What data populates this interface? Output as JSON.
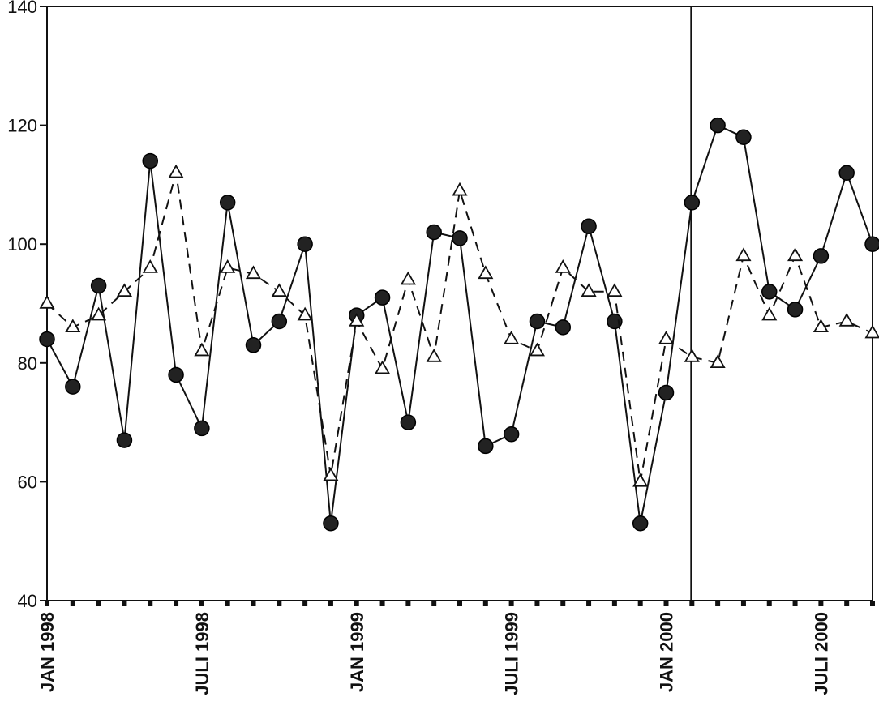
{
  "chart_data": {
    "type": "line",
    "title": "",
    "xlabel": "",
    "ylabel": "",
    "ylim": [
      40,
      140
    ],
    "yticks": [
      40,
      60,
      80,
      100,
      120,
      140
    ],
    "x_start": "JAN 1998",
    "x_end": "SEP 2000",
    "xtick_labels": [
      "JAN 1998",
      "JULI 1998",
      "JAN 1999",
      "JULI 1999",
      "JAN 2000",
      "JULI 2000"
    ],
    "xtick_label_index": [
      0,
      6,
      12,
      18,
      24,
      30
    ],
    "divider_after_index": 25,
    "grid": false,
    "legend": "none",
    "series": [
      {
        "marker": "filled-circle",
        "line_style": "solid",
        "color": "#111111",
        "values": [
          84,
          76,
          93,
          67,
          114,
          78,
          69,
          107,
          83,
          87,
          100,
          53,
          88,
          91,
          70,
          102,
          101,
          66,
          68,
          87,
          86,
          103,
          87,
          53,
          75,
          107,
          120,
          118,
          92,
          89,
          98,
          112,
          100
        ]
      },
      {
        "marker": "open-triangle",
        "line_style": "dashed",
        "color": "#111111",
        "values": [
          90,
          86,
          88,
          92,
          96,
          112,
          82,
          96,
          95,
          92,
          88,
          61,
          87,
          79,
          94,
          81,
          109,
          95,
          84,
          82,
          96,
          92,
          92,
          60,
          84,
          81,
          80,
          98,
          88,
          98,
          86,
          87,
          85
        ]
      }
    ]
  }
}
